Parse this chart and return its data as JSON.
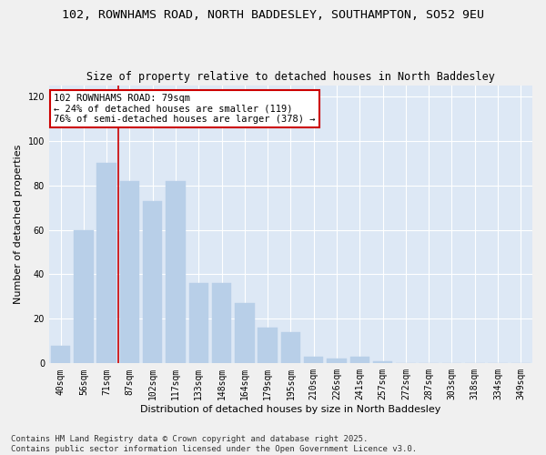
{
  "title1": "102, ROWNHAMS ROAD, NORTH BADDESLEY, SOUTHAMPTON, SO52 9EU",
  "title2": "Size of property relative to detached houses in North Baddesley",
  "xlabel": "Distribution of detached houses by size in North Baddesley",
  "ylabel": "Number of detached properties",
  "categories": [
    "40sqm",
    "56sqm",
    "71sqm",
    "87sqm",
    "102sqm",
    "117sqm",
    "133sqm",
    "148sqm",
    "164sqm",
    "179sqm",
    "195sqm",
    "210sqm",
    "226sqm",
    "241sqm",
    "257sqm",
    "272sqm",
    "287sqm",
    "303sqm",
    "318sqm",
    "334sqm",
    "349sqm"
  ],
  "values": [
    8,
    60,
    90,
    82,
    73,
    82,
    36,
    36,
    27,
    16,
    14,
    3,
    2,
    3,
    1,
    0,
    0,
    0,
    0,
    0,
    0
  ],
  "bar_color": "#b8cfe8",
  "bar_edge_color": "#b8cfe8",
  "background_color": "#dde8f5",
  "grid_color": "#ffffff",
  "annotation_text": "102 ROWNHAMS ROAD: 79sqm\n← 24% of detached houses are smaller (119)\n76% of semi-detached houses are larger (378) →",
  "annotation_box_color": "#ffffff",
  "annotation_box_edge": "#cc0000",
  "vline_x_index": 2,
  "vline_color": "#cc0000",
  "ylim": [
    0,
    125
  ],
  "yticks": [
    0,
    20,
    40,
    60,
    80,
    100,
    120
  ],
  "footer": "Contains HM Land Registry data © Crown copyright and database right 2025.\nContains public sector information licensed under the Open Government Licence v3.0.",
  "title_fontsize": 9.5,
  "subtitle_fontsize": 8.5,
  "axis_label_fontsize": 8,
  "tick_fontsize": 7,
  "annotation_fontsize": 7.5,
  "footer_fontsize": 6.5
}
